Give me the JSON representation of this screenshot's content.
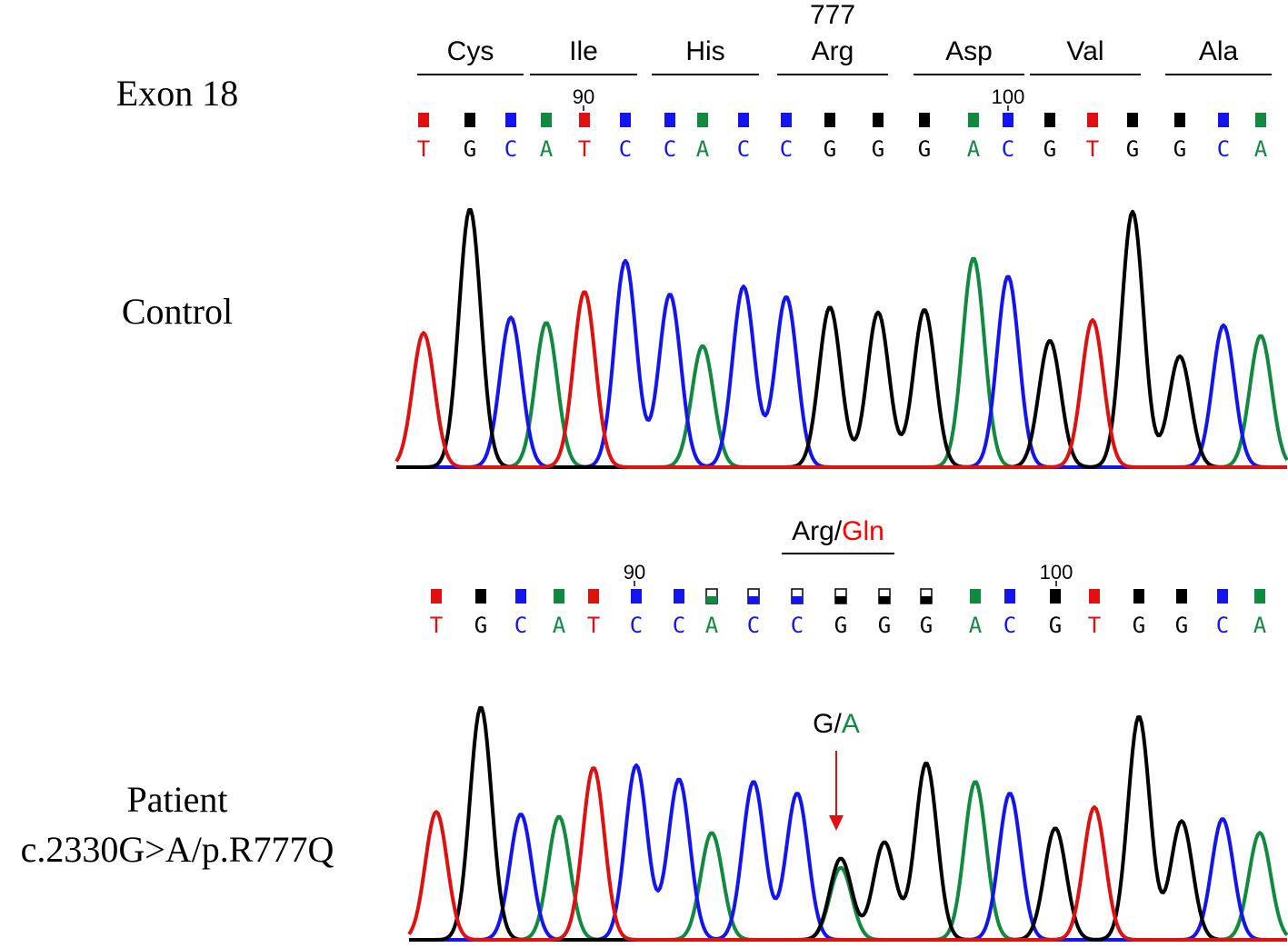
{
  "labels": {
    "exon": "Exon 18",
    "control": "Control",
    "patient": "Patient",
    "mutation": "c.2330G>A/p.R777Q"
  },
  "control": {
    "codon_number": "777",
    "codons": [
      "Cys",
      "Ile",
      "His",
      "Arg",
      "Asp",
      "Val",
      "Ala"
    ],
    "position_markers": [
      "90",
      "100"
    ],
    "bases": [
      "T",
      "G",
      "C",
      "A",
      "T",
      "C",
      "C",
      "A",
      "C",
      "C",
      "G",
      "G",
      "G",
      "A",
      "C",
      "G",
      "T",
      "G",
      "G",
      "C",
      "A"
    ],
    "peaks": [
      {
        "base": "T",
        "height": 0.52
      },
      {
        "base": "G",
        "height": 1.0
      },
      {
        "base": "C",
        "height": 0.58
      },
      {
        "base": "A",
        "height": 0.56
      },
      {
        "base": "T",
        "height": 0.68
      },
      {
        "base": "C",
        "height": 0.8
      },
      {
        "base": "C",
        "height": 0.67
      },
      {
        "base": "A",
        "height": 0.47
      },
      {
        "base": "C",
        "height": 0.7
      },
      {
        "base": "C",
        "height": 0.66
      },
      {
        "base": "G",
        "height": 0.62
      },
      {
        "base": "G",
        "height": 0.6
      },
      {
        "base": "G",
        "height": 0.61
      },
      {
        "base": "A",
        "height": 0.81
      },
      {
        "base": "C",
        "height": 0.74
      },
      {
        "base": "G",
        "height": 0.49
      },
      {
        "base": "T",
        "height": 0.57
      },
      {
        "base": "G",
        "height": 0.99
      },
      {
        "base": "G",
        "height": 0.43
      },
      {
        "base": "C",
        "height": 0.55
      },
      {
        "base": "A",
        "height": 0.51
      }
    ]
  },
  "patient": {
    "codon_label_normal": "Arg/",
    "codon_label_mutant": "Gln",
    "position_markers": [
      "90",
      "100"
    ],
    "bases": [
      "T",
      "G",
      "C",
      "A",
      "T",
      "C",
      "C",
      "A",
      "C",
      "C",
      "G",
      "G",
      "G",
      "A",
      "C",
      "G",
      "T",
      "G",
      "G",
      "C",
      "A"
    ],
    "peaks": [
      {
        "base": "T",
        "height": 0.55
      },
      {
        "base": "G",
        "height": 1.0
      },
      {
        "base": "C",
        "height": 0.54
      },
      {
        "base": "A",
        "height": 0.53
      },
      {
        "base": "T",
        "height": 0.74
      },
      {
        "base": "C",
        "height": 0.75
      },
      {
        "base": "C",
        "height": 0.69
      },
      {
        "base": "A",
        "height": 0.46
      },
      {
        "base": "C",
        "height": 0.68
      },
      {
        "base": "C",
        "height": 0.63
      },
      {
        "base": "G",
        "height": 0.35
      },
      {
        "base": "G",
        "height": 0.42
      },
      {
        "base": "G",
        "height": 0.76
      },
      {
        "base": "A",
        "height": 0.68
      },
      {
        "base": "C",
        "height": 0.63
      },
      {
        "base": "G",
        "height": 0.48
      },
      {
        "base": "T",
        "height": 0.57
      },
      {
        "base": "G",
        "height": 0.96
      },
      {
        "base": "G",
        "height": 0.51
      },
      {
        "base": "C",
        "height": 0.52
      },
      {
        "base": "A",
        "height": 0.46
      }
    ],
    "extra_peaks": [
      {
        "base": "A",
        "position": 10,
        "height": 0.31
      }
    ],
    "call_label_normal": "G/",
    "call_label_mutant": "A"
  },
  "colors": {
    "A": "#0f8a3e",
    "C": "#1414f0",
    "G": "#000000",
    "T": "#e01010",
    "mutant_text": "#ff0000",
    "arrow": "#e01010"
  }
}
